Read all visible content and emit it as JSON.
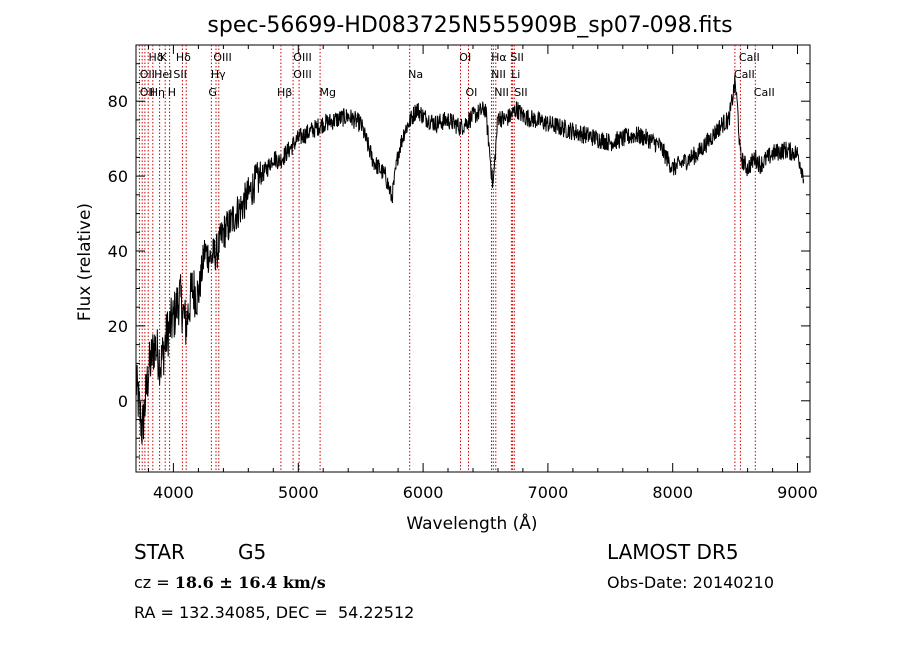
{
  "chart_data": {
    "type": "line",
    "title": "spec-56699-HD083725N555909B_sp07-098.fits",
    "xlabel": "Wavelength (Å)",
    "ylabel": "Flux (relative)",
    "xlim": [
      3700,
      9100
    ],
    "ylim": [
      -19,
      95
    ],
    "xticks": [
      4000,
      5000,
      6000,
      7000,
      8000,
      9000
    ],
    "yticks": [
      0,
      20,
      40,
      60,
      80
    ],
    "grid": false,
    "line_color": "#000000",
    "marker_color": "#cc0000",
    "series": [
      {
        "x": [
          3700,
          3750,
          3800,
          3850,
          3900,
          3950,
          4000,
          4050,
          4100,
          4150,
          4200,
          4250,
          4300,
          4350,
          4400,
          4450,
          4500,
          4550,
          4600,
          4650,
          4700,
          4750,
          4800,
          4850,
          4900,
          4950,
          5000,
          5100,
          5200,
          5300,
          5400,
          5500,
          5600,
          5700,
          5750,
          5800,
          5850,
          5900,
          5950,
          6000,
          6100,
          6200,
          6300,
          6400,
          6500,
          6560,
          6600,
          6650,
          6700,
          6750,
          6800,
          6900,
          7000,
          7100,
          7200,
          7300,
          7400,
          7500,
          7600,
          7700,
          7800,
          7900,
          8000,
          8100,
          8200,
          8300,
          8400,
          8450,
          8500,
          8520,
          8540,
          8560,
          8600,
          8660,
          8700,
          8800,
          8900,
          9000,
          9050
        ],
        "values": [
          5,
          -8,
          8,
          15,
          10,
          18,
          22,
          28,
          20,
          30,
          28,
          40,
          38,
          40,
          45,
          47,
          50,
          52,
          55,
          58,
          60,
          62,
          65,
          64,
          66,
          68,
          70,
          72,
          74,
          75,
          76,
          74,
          64,
          60,
          54,
          66,
          72,
          75,
          78,
          76,
          74,
          75,
          73,
          76,
          78,
          57,
          76,
          75,
          76,
          78,
          76,
          75,
          74,
          73,
          72,
          71,
          70,
          69,
          70,
          71,
          70,
          68,
          62,
          64,
          66,
          70,
          74,
          75,
          85,
          78,
          66,
          64,
          62,
          65,
          63,
          66,
          67,
          66,
          60
        ]
      }
    ],
    "lines": [
      {
        "wavelength": 3727,
        "label": "OII"
      },
      {
        "wavelength": 3750,
        "label": ""
      },
      {
        "wavelength": 3771,
        "label": ""
      },
      {
        "wavelength": 3798,
        "label": ""
      },
      {
        "wavelength": 3835,
        "label": "Hη"
      },
      {
        "wavelength": 3889,
        "label": "Hε"
      },
      {
        "wavelength": 3934,
        "label": "K"
      },
      {
        "wavelength": 3969,
        "label": "H"
      },
      {
        "wavelength": 4072,
        "label": "SII"
      },
      {
        "wavelength": 4102,
        "label": "Hδ"
      },
      {
        "wavelength": 4304,
        "label": "G"
      },
      {
        "wavelength": 4341,
        "label": "Hγ"
      },
      {
        "wavelength": 4363,
        "label": "OIII"
      },
      {
        "wavelength": 4861,
        "label": "Hβ"
      },
      {
        "wavelength": 4959,
        "label": "OIII"
      },
      {
        "wavelength": 5007,
        "label": "OIII"
      },
      {
        "wavelength": 5175,
        "label": "Mg"
      },
      {
        "wavelength": 5893,
        "label": "Na"
      },
      {
        "wavelength": 6300,
        "label": "OI"
      },
      {
        "wavelength": 6364,
        "label": "OI"
      },
      {
        "wavelength": 6548,
        "label": "NII"
      },
      {
        "wavelength": 6563,
        "label": "Hα"
      },
      {
        "wavelength": 6583,
        "label": "NII"
      },
      {
        "wavelength": 6708,
        "label": "Li"
      },
      {
        "wavelength": 6717,
        "label": "SII"
      },
      {
        "wavelength": 6731,
        "label": "SII"
      },
      {
        "wavelength": 8498,
        "label": "CaII"
      },
      {
        "wavelength": 8542,
        "label": "CaII"
      },
      {
        "wavelength": 8662,
        "label": "CaII"
      }
    ],
    "line_labels": [
      {
        "text": "Hδ",
        "wavelength": 3800,
        "row": 1
      },
      {
        "text": "K",
        "wavelength": 3890,
        "row": 1
      },
      {
        "text": "Hδ",
        "wavelength": 4020,
        "row": 1
      },
      {
        "text": "OIII",
        "wavelength": 4320,
        "row": 1
      },
      {
        "text": "OIII",
        "wavelength": 4960,
        "row": 1
      },
      {
        "text": "OI",
        "wavelength": 6290,
        "row": 1
      },
      {
        "text": "Hα",
        "wavelength": 6545,
        "row": 1
      },
      {
        "text": "SII",
        "wavelength": 6700,
        "row": 1
      },
      {
        "text": "CaII",
        "wavelength": 8530,
        "row": 1
      },
      {
        "text": "OII",
        "wavelength": 3730,
        "row": 2
      },
      {
        "text": "HeI",
        "wavelength": 3845,
        "row": 2
      },
      {
        "text": "SII",
        "wavelength": 4000,
        "row": 2
      },
      {
        "text": "Hγ",
        "wavelength": 4300,
        "row": 2
      },
      {
        "text": "OIII",
        "wavelength": 4960,
        "row": 2
      },
      {
        "text": "Na",
        "wavelength": 5880,
        "row": 2
      },
      {
        "text": "NII",
        "wavelength": 6545,
        "row": 2
      },
      {
        "text": "Li",
        "wavelength": 6705,
        "row": 2
      },
      {
        "text": "CaII",
        "wavelength": 8490,
        "row": 2
      },
      {
        "text": "OII",
        "wavelength": 3730,
        "row": 3
      },
      {
        "text": "Hη",
        "wavelength": 3810,
        "row": 3
      },
      {
        "text": "H",
        "wavelength": 3955,
        "row": 3
      },
      {
        "text": "G",
        "wavelength": 4280,
        "row": 3
      },
      {
        "text": "Hβ",
        "wavelength": 4830,
        "row": 3
      },
      {
        "text": "Mg",
        "wavelength": 5170,
        "row": 3
      },
      {
        "text": "OI",
        "wavelength": 6340,
        "row": 3
      },
      {
        "text": "NII",
        "wavelength": 6570,
        "row": 3
      },
      {
        "text": "SII",
        "wavelength": 6730,
        "row": 3
      },
      {
        "text": "CaII",
        "wavelength": 8650,
        "row": 3
      }
    ]
  },
  "info": {
    "object_type": "STAR",
    "subclass": "G5",
    "survey": "LAMOST DR5",
    "cz_label": "cz = ",
    "cz_value": "18.6 ± 16.4 km/s",
    "obs_date": "Obs-Date: 20140210",
    "radec": "RA = 132.34085, DEC =  54.22512"
  }
}
